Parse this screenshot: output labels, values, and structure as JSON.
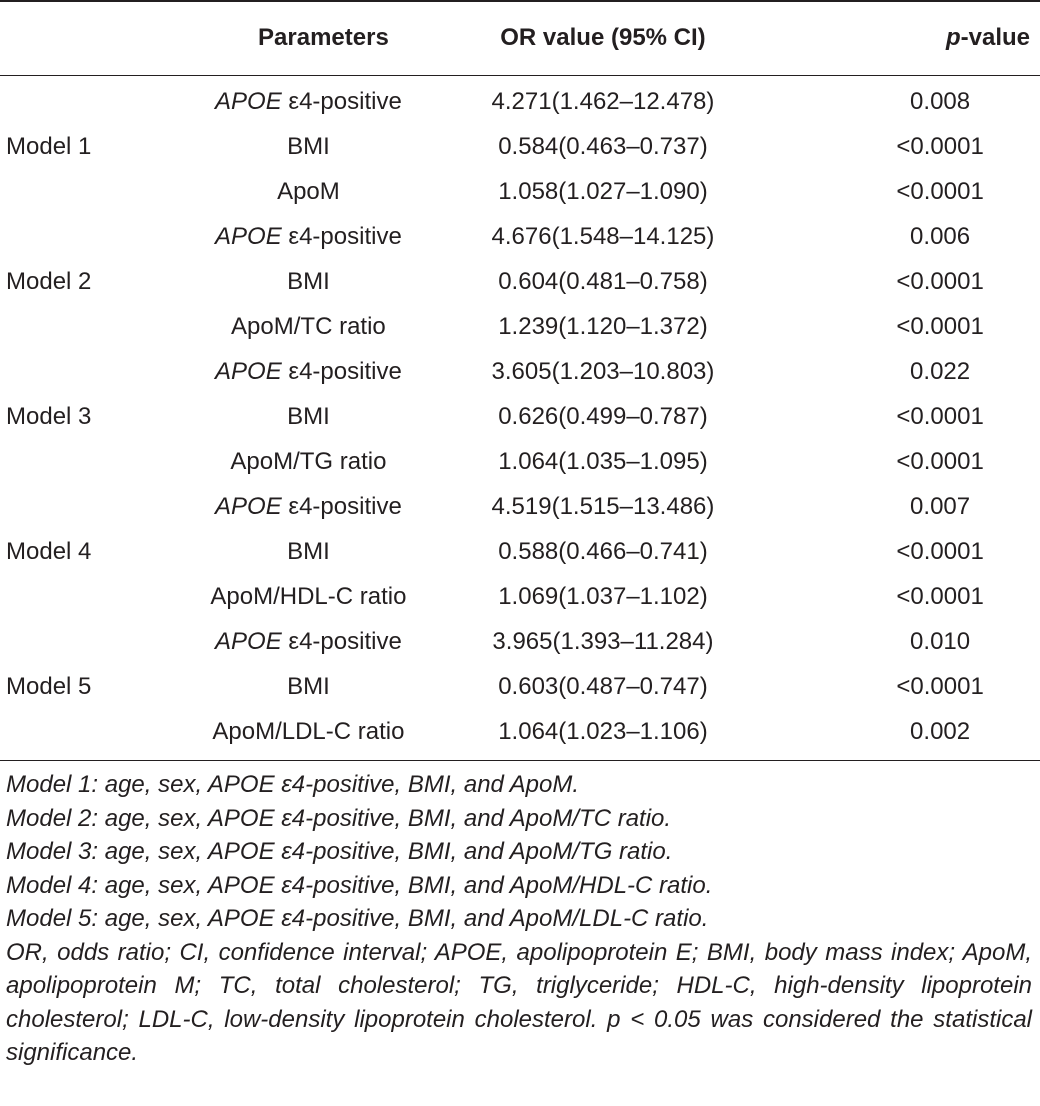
{
  "table": {
    "headers": {
      "model": "",
      "parameters": "Parameters",
      "or_value": "OR value (95% CI)",
      "p_value_italic": "p",
      "p_value_rest": "-value"
    },
    "rows": [
      {
        "model": "",
        "param_italic": "APOE",
        "param": " ε4-positive",
        "or": "4.271(1.462–12.478)",
        "p": "0.008"
      },
      {
        "model": "Model 1",
        "param_italic": "",
        "param": "BMI",
        "or": "0.584(0.463–0.737)",
        "p": "<0.0001"
      },
      {
        "model": "",
        "param_italic": "",
        "param": "ApoM",
        "or": "1.058(1.027–1.090)",
        "p": "<0.0001"
      },
      {
        "model": "",
        "param_italic": "APOE",
        "param": " ε4-positive",
        "or": "4.676(1.548–14.125)",
        "p": "0.006"
      },
      {
        "model": "Model 2",
        "param_italic": "",
        "param": "BMI",
        "or": "0.604(0.481–0.758)",
        "p": "<0.0001"
      },
      {
        "model": "",
        "param_italic": "",
        "param": "ApoM/TC ratio",
        "or": "1.239(1.120–1.372)",
        "p": "<0.0001"
      },
      {
        "model": "",
        "param_italic": "APOE",
        "param": " ε4-positive",
        "or": "3.605(1.203–10.803)",
        "p": "0.022"
      },
      {
        "model": "Model 3",
        "param_italic": "",
        "param": "BMI",
        "or": "0.626(0.499–0.787)",
        "p": "<0.0001"
      },
      {
        "model": "",
        "param_italic": "",
        "param": "ApoM/TG ratio",
        "or": "1.064(1.035–1.095)",
        "p": "<0.0001"
      },
      {
        "model": "",
        "param_italic": "APOE",
        "param": " ε4-positive",
        "or": "4.519(1.515–13.486)",
        "p": "0.007"
      },
      {
        "model": "Model 4",
        "param_italic": "",
        "param": "BMI",
        "or": "0.588(0.466–0.741)",
        "p": "<0.0001"
      },
      {
        "model": "",
        "param_italic": "",
        "param": "ApoM/HDL-C ratio",
        "or": "1.069(1.037–1.102)",
        "p": "<0.0001"
      },
      {
        "model": "",
        "param_italic": "APOE",
        "param": " ε4-positive",
        "or": "3.965(1.393–11.284)",
        "p": "0.010"
      },
      {
        "model": "Model 5",
        "param_italic": "",
        "param": "BMI",
        "or": "0.603(0.487–0.747)",
        "p": "<0.0001"
      },
      {
        "model": "",
        "param_italic": "",
        "param": "ApoM/LDL-C ratio",
        "or": "1.064(1.023–1.106)",
        "p": "0.002"
      }
    ]
  },
  "notes": [
    "Model 1: age, sex, APOE ε4-positive, BMI, and ApoM.",
    "Model 2: age, sex, APOE ε4-positive, BMI, and ApoM/TC ratio.",
    "Model 3: age, sex, APOE ε4-positive, BMI, and ApoM/TG ratio.",
    "Model 4: age, sex, APOE ε4-positive, BMI, and ApoM/HDL-C ratio.",
    "Model 5: age, sex, APOE ε4-positive, BMI, and ApoM/LDL-C ratio."
  ],
  "abbreviations": "OR, odds ratio; CI, confidence interval; APOE, apolipoprotein E; BMI, body mass index; ApoM, apolipoprotein M; TC, total cholesterol; TG, triglyceride; HDL-C, high-density lipoprotein cholesterol; LDL-C, low-density lipoprotein cholesterol. p < 0.05 was considered the statistical significance."
}
